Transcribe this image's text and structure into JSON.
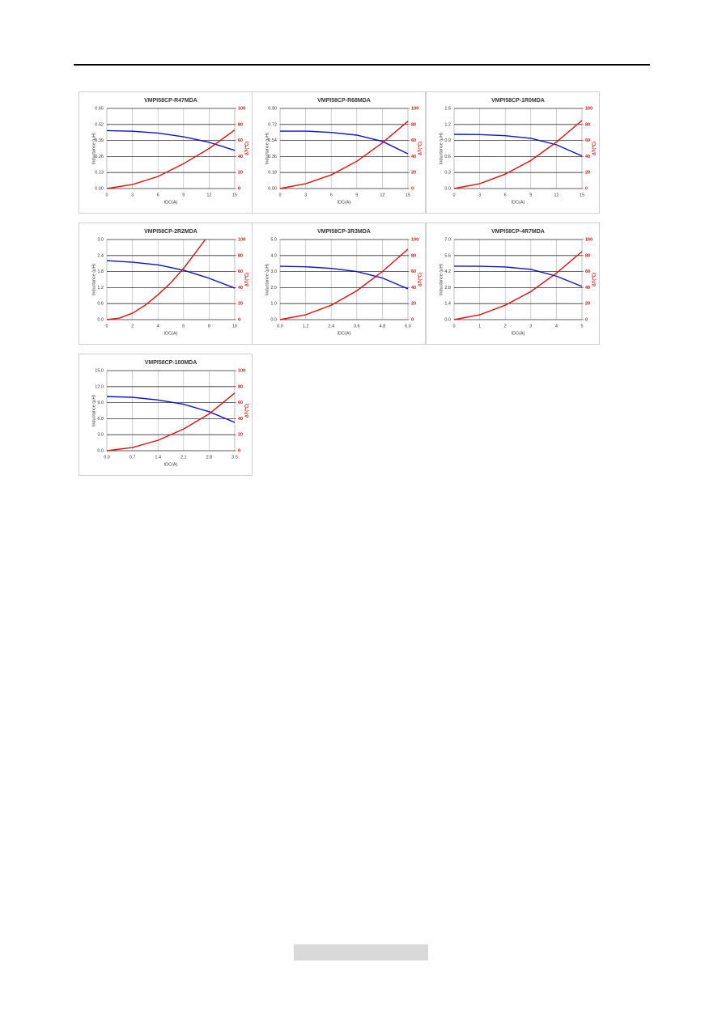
{
  "chart_data": [
    {
      "type": "line",
      "title": "VMPI58CP-R47MDA",
      "y_label": "Inductance (μH)",
      "y2_label": "ΔT(℃)",
      "x_label": "IDC(A)",
      "xlim": [
        0,
        15
      ],
      "xticks": [
        0,
        3,
        6,
        9,
        12,
        15
      ],
      "ylim": [
        0,
        0.65
      ],
      "yticks": [
        {
          "value": 0,
          "label": "0.00"
        },
        0.13,
        0.26,
        0.39,
        0.52,
        0.65
      ],
      "y2lim": [
        0,
        100
      ],
      "y2ticks": [
        0,
        20,
        40,
        60,
        80,
        100
      ],
      "grid": true,
      "series": [
        {
          "color": "#1010d0",
          "x": [
            0,
            3,
            6,
            9,
            12,
            15
          ],
          "values": [
            0.47,
            0.465,
            0.45,
            0.42,
            0.375,
            0.31
          ]
        },
        {
          "color": "#e01010",
          "axis": "y2",
          "x": [
            0,
            3,
            6,
            9,
            12,
            15
          ],
          "values": [
            0,
            5,
            15,
            31,
            50,
            73
          ]
        }
      ]
    },
    {
      "type": "line",
      "title": "VMPI58CP-R68MDA",
      "y_label": "Inductance (μH)",
      "y2_label": "ΔT(℃)",
      "x_label": "IDC(A)",
      "xlim": [
        0,
        15
      ],
      "xticks": [
        0,
        3,
        6,
        9,
        12,
        15
      ],
      "ylim": [
        0,
        0.9
      ],
      "yticks": [
        {
          "value": 0,
          "label": "0.00"
        },
        0.18,
        0.36,
        0.54,
        0.72,
        {
          "value": 0.9,
          "label": "0.90"
        }
      ],
      "y2lim": [
        0,
        100
      ],
      "y2ticks": [
        0,
        20,
        40,
        60,
        80,
        100
      ],
      "grid": true,
      "series": [
        {
          "color": "#1010d0",
          "x": [
            0,
            3,
            6,
            9,
            12,
            15
          ],
          "values": [
            0.645,
            0.645,
            0.63,
            0.6,
            0.53,
            0.39
          ]
        },
        {
          "color": "#e01010",
          "axis": "y2",
          "x": [
            0,
            3,
            6,
            9,
            12,
            15
          ],
          "values": [
            0,
            6,
            17,
            34,
            57,
            84
          ]
        }
      ]
    },
    {
      "type": "line",
      "title": "VMPI58CP-1R0MDA",
      "y_label": "Inductance (μH)",
      "y2_label": "ΔT(℃)",
      "x_label": "IDC(A)",
      "xlim": [
        0,
        15
      ],
      "xticks": [
        0,
        3,
        6,
        9,
        12,
        15
      ],
      "ylim": [
        0,
        1.5
      ],
      "yticks": [
        {
          "value": 0,
          "label": "0.0"
        },
        0.3,
        0.6,
        0.9,
        1.2,
        1.5
      ],
      "y2lim": [
        0,
        100
      ],
      "y2ticks": [
        0,
        20,
        40,
        60,
        80,
        100
      ],
      "grid": true,
      "series": [
        {
          "color": "#1010d0",
          "x": [
            0,
            3,
            6,
            9,
            12,
            15
          ],
          "values": [
            1.015,
            1.01,
            0.99,
            0.94,
            0.82,
            0.61
          ]
        },
        {
          "color": "#e01010",
          "axis": "y2",
          "x": [
            0,
            3,
            6,
            9,
            12,
            15
          ],
          "values": [
            0,
            6,
            18,
            35,
            58,
            85
          ]
        }
      ]
    },
    {
      "type": "line",
      "title": "VMPI58CP-2R2MDA",
      "y_label": "Inductance (μH)",
      "y2_label": "ΔT(℃)",
      "x_label": "IDC(A)",
      "xlim": [
        0,
        10
      ],
      "xticks": [
        0,
        2,
        4,
        6,
        8,
        10
      ],
      "ylim": [
        0,
        3
      ],
      "yticks": [
        {
          "value": 0,
          "label": "0.0"
        },
        0.6,
        1.2,
        1.8,
        2.4,
        {
          "value": 3,
          "label": "3.0"
        }
      ],
      "y2lim": [
        0,
        100
      ],
      "y2ticks": [
        0,
        20,
        40,
        60,
        80,
        100
      ],
      "grid": true,
      "series": [
        {
          "color": "#1010d0",
          "x": [
            0,
            2,
            4,
            6,
            8,
            10
          ],
          "values": [
            2.21,
            2.15,
            2.05,
            1.85,
            1.55,
            1.18
          ]
        },
        {
          "color": "#e01010",
          "axis": "y2",
          "x": [
            0,
            1,
            2,
            3,
            4,
            5,
            6,
            7,
            7.7
          ],
          "values": [
            0,
            2,
            8,
            18,
            31,
            46,
            64,
            85,
            100
          ]
        }
      ]
    },
    {
      "type": "line",
      "title": "VMPI58CP-3R3MDA",
      "y_label": "Inductance (μH)",
      "y2_label": "ΔT(℃)",
      "x_label": "IDC(A)",
      "xlim": [
        0,
        6
      ],
      "xticks": [
        {
          "value": 0,
          "label": "0.0"
        },
        1.2,
        2.4,
        3.6,
        4.8,
        {
          "value": 6,
          "label": "6.0"
        }
      ],
      "ylim": [
        0,
        5
      ],
      "yticks": [
        {
          "value": 0,
          "label": "0.0"
        },
        {
          "value": 1,
          "label": "1.0"
        },
        {
          "value": 2,
          "label": "2.0"
        },
        {
          "value": 3,
          "label": "3.0"
        },
        {
          "value": 4,
          "label": "4.0"
        },
        {
          "value": 5,
          "label": "5.0"
        }
      ],
      "y2lim": [
        0,
        100
      ],
      "y2ticks": [
        0,
        20,
        40,
        60,
        80,
        100
      ],
      "grid": true,
      "series": [
        {
          "color": "#1010d0",
          "x": [
            0,
            1.2,
            2.4,
            3.6,
            4.8,
            6
          ],
          "values": [
            3.33,
            3.3,
            3.2,
            3.0,
            2.6,
            1.92
          ]
        },
        {
          "color": "#e01010",
          "axis": "y2",
          "x": [
            0,
            1.2,
            2.4,
            3.6,
            4.8,
            6
          ],
          "values": [
            0,
            6,
            18,
            36,
            60,
            88
          ]
        }
      ]
    },
    {
      "type": "line",
      "title": "VMPI58CP-4R7MDA",
      "y_label": "Inductance (μH)",
      "y2_label": "ΔT(℃)",
      "x_label": "IDC(A)",
      "xlim": [
        0,
        5
      ],
      "xticks": [
        0,
        1,
        2,
        3,
        4,
        5
      ],
      "ylim": [
        0,
        7
      ],
      "yticks": [
        {
          "value": 0,
          "label": "0.0"
        },
        1.4,
        2.8,
        4.2,
        5.6,
        {
          "value": 7,
          "label": "7.0"
        }
      ],
      "y2lim": [
        0,
        100
      ],
      "y2ticks": [
        0,
        20,
        40,
        60,
        80,
        100
      ],
      "grid": true,
      "series": [
        {
          "color": "#1010d0",
          "x": [
            0,
            1,
            2,
            3,
            4,
            5
          ],
          "values": [
            4.67,
            4.66,
            4.6,
            4.4,
            3.8,
            2.9
          ]
        },
        {
          "color": "#e01010",
          "axis": "y2",
          "x": [
            0,
            1,
            2,
            3,
            4,
            5
          ],
          "values": [
            0,
            6,
            18,
            35,
            58,
            85
          ]
        }
      ]
    },
    {
      "type": "line",
      "title": "VMPI58CP-100MDA",
      "y_label": "Inductance (μH)",
      "y2_label": "ΔT(℃)",
      "x_label": "IDC(A)",
      "xlim": [
        0,
        3.5
      ],
      "xticks": [
        {
          "value": 0,
          "label": "0.0"
        },
        0.7,
        1.4,
        2.1,
        2.8,
        3.5
      ],
      "ylim": [
        0,
        15
      ],
      "yticks": [
        {
          "value": 0,
          "label": "0.0"
        },
        {
          "value": 3,
          "label": "3.0"
        },
        {
          "value": 6,
          "label": "6.0"
        },
        {
          "value": 9,
          "label": "9.0"
        },
        {
          "value": 12,
          "label": "12.0"
        },
        {
          "value": 15,
          "label": "15.0"
        }
      ],
      "y2lim": [
        0,
        100
      ],
      "y2ticks": [
        0,
        20,
        40,
        60,
        80,
        100
      ],
      "grid": true,
      "series": [
        {
          "color": "#1010d0",
          "x": [
            0,
            0.7,
            1.4,
            2.1,
            2.8,
            3.5
          ],
          "values": [
            10.15,
            10.0,
            9.5,
            8.7,
            7.3,
            5.3
          ]
        },
        {
          "color": "#e01010",
          "axis": "y2",
          "x": [
            0,
            0.7,
            1.4,
            2.1,
            2.8,
            3.5
          ],
          "values": [
            0,
            4,
            13,
            27,
            46,
            72
          ]
        }
      ]
    }
  ]
}
